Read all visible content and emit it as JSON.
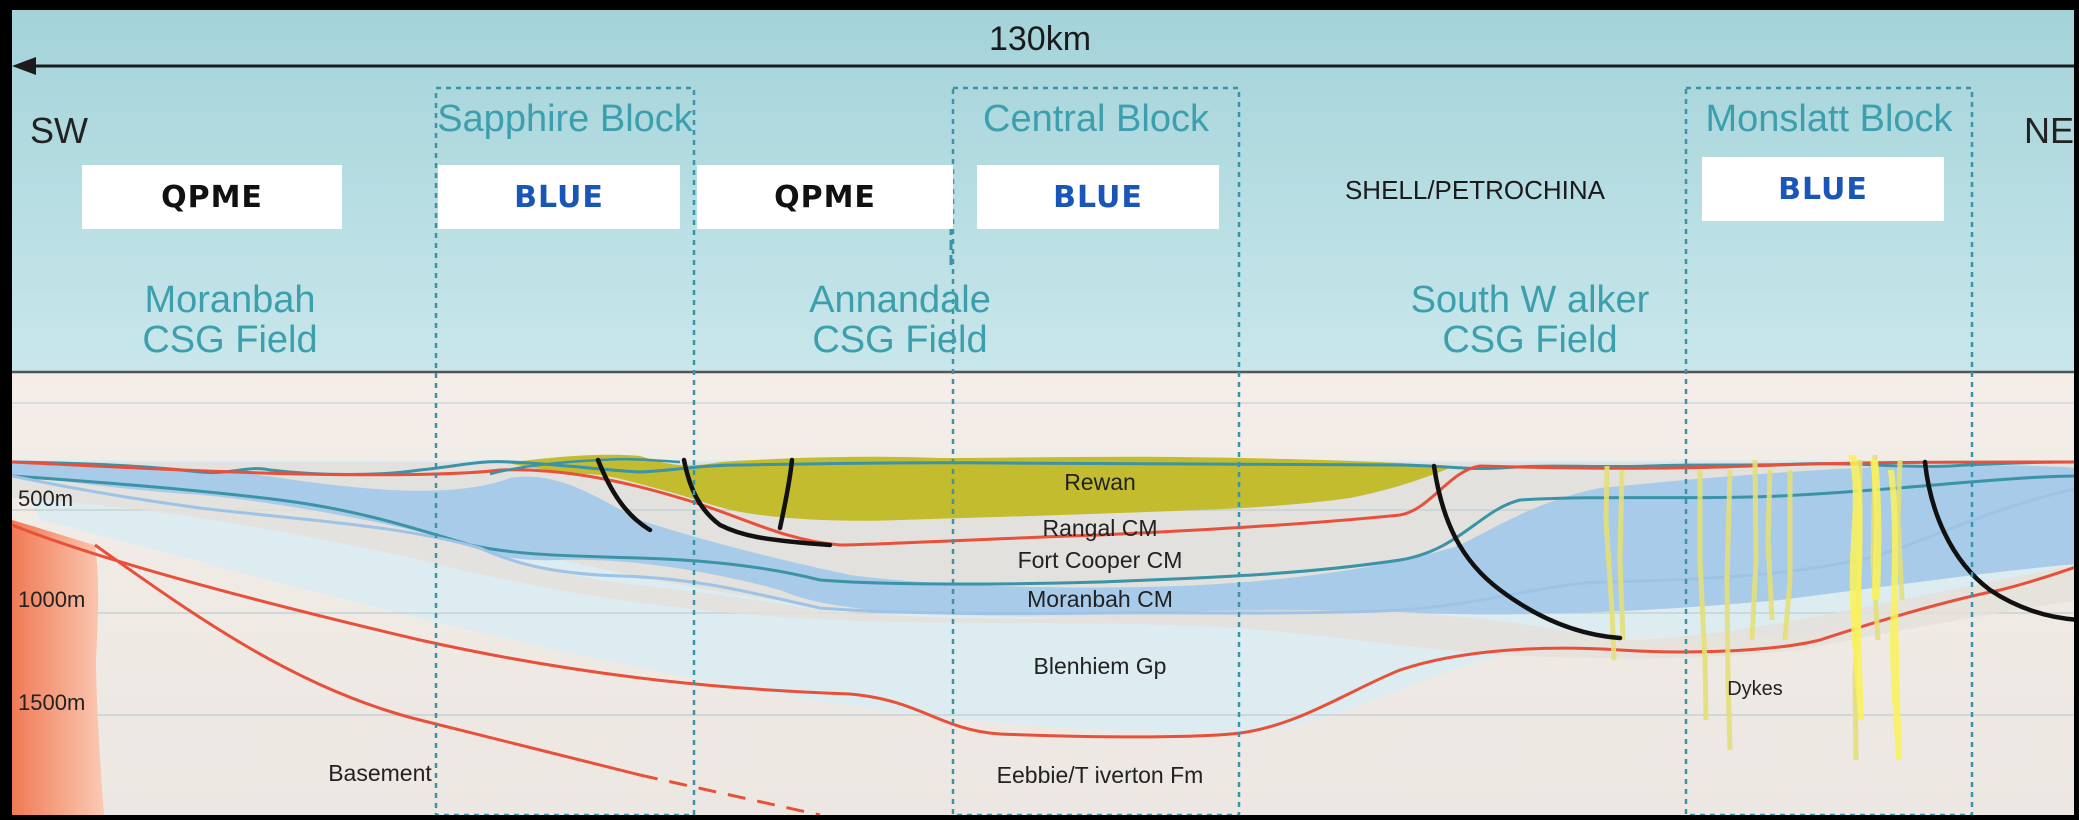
{
  "scale_label": "130km",
  "directions": {
    "left": "SW",
    "right": "NE"
  },
  "blocks": [
    {
      "name": "Sapphire Block"
    },
    {
      "name": "Central Block"
    },
    {
      "name": "Monslatt Block"
    }
  ],
  "operator_labels": [
    "QPME",
    "BLUE",
    "QPME",
    "BLUE",
    "SHELL/PETROCHINA",
    "BLUE"
  ],
  "fields": [
    {
      "line1": "Moranbah",
      "line2": "CSG Field"
    },
    {
      "line1": "Annandale",
      "line2": "CSG Field"
    },
    {
      "line1": "South W alker",
      "line2": "CSG Field"
    }
  ],
  "depths": [
    "500m",
    "1000m",
    "1500m"
  ],
  "units": {
    "rewan": "Rewan",
    "rangal": "Rangal CM",
    "fort_cooper": "Fort Cooper CM",
    "moranbah": "Moranbah CM",
    "blenheim": "Blenhiem Gp",
    "basement": "Basement",
    "eebbie": "Eebbie/T iverton Fm",
    "dykes": "Dykes"
  },
  "colors": {
    "sky_top": "#a8d7dc",
    "sky_bottom": "#e6f4f6",
    "coal_measure_blue": "#a9cdeb",
    "rewan_olive": "#c2bd34",
    "horizon_red": "#e8503a",
    "horizon_teal": "#3a93a6",
    "basement_salmon": "#f28d6a",
    "label_teal": "#3c9fae",
    "operator_blue": "#1a56b8"
  }
}
